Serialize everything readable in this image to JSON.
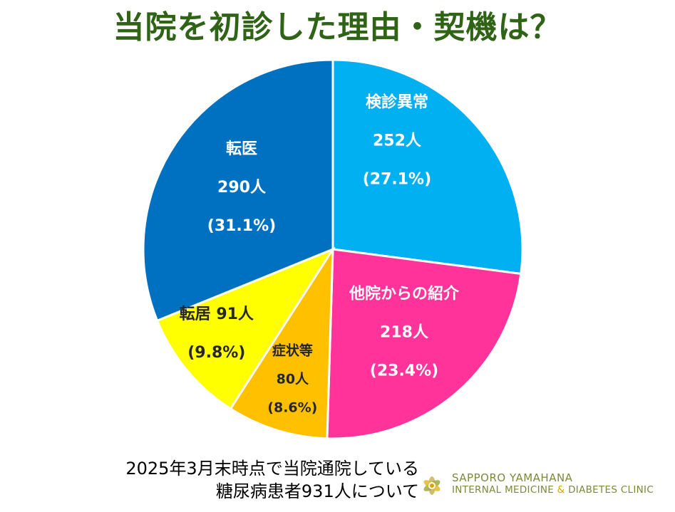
{
  "page_title": "当院を初診した理由・契機は？",
  "colors": {
    "title": "#2f6316",
    "label_light": "#ffffff",
    "label_dark": "#262626",
    "logo": "#7a8a3a"
  },
  "chart_data": {
    "type": "pie",
    "title": "当院を初診した理由・契機は？",
    "total_label": "糖尿病患者931人",
    "slices": [
      {
        "name": "検診異常",
        "count_label": "252人",
        "pct_label": "(27.1%)",
        "value": 252,
        "percent": 27.1,
        "color": "#00b0f0",
        "text_color": "#ffffff"
      },
      {
        "name": "他院からの紹介",
        "count_label": "218人",
        "pct_label": "(23.4%)",
        "value": 218,
        "percent": 23.4,
        "color": "#ff3399",
        "text_color": "#ffffff"
      },
      {
        "name": "症状等",
        "count_label": "80人",
        "pct_label": "(8.6%)",
        "value": 80,
        "percent": 8.6,
        "color": "#ffc000",
        "text_color": "#262626"
      },
      {
        "name": "転居",
        "count_label": "91人",
        "pct_label": "(9.8%)",
        "value": 91,
        "percent": 9.8,
        "color": "#ffff00",
        "text_color": "#262626"
      },
      {
        "name": "転医",
        "count_label": "290人",
        "pct_label": "(31.1%)",
        "value": 290,
        "percent": 31.1,
        "color": "#0070c0",
        "text_color": "#ffffff"
      }
    ]
  },
  "footnote": {
    "line1": "2025年3月末時点で当院通院している",
    "line2": "糖尿病患者931人について"
  },
  "logo": {
    "line1": "SAPPORO YAMAHANA",
    "line2_a": "INTERNAL MEDICINE ",
    "line2_amp": "&",
    "line2_b": " DIABETES CLINIC",
    "icon": "flower-logo-icon"
  }
}
